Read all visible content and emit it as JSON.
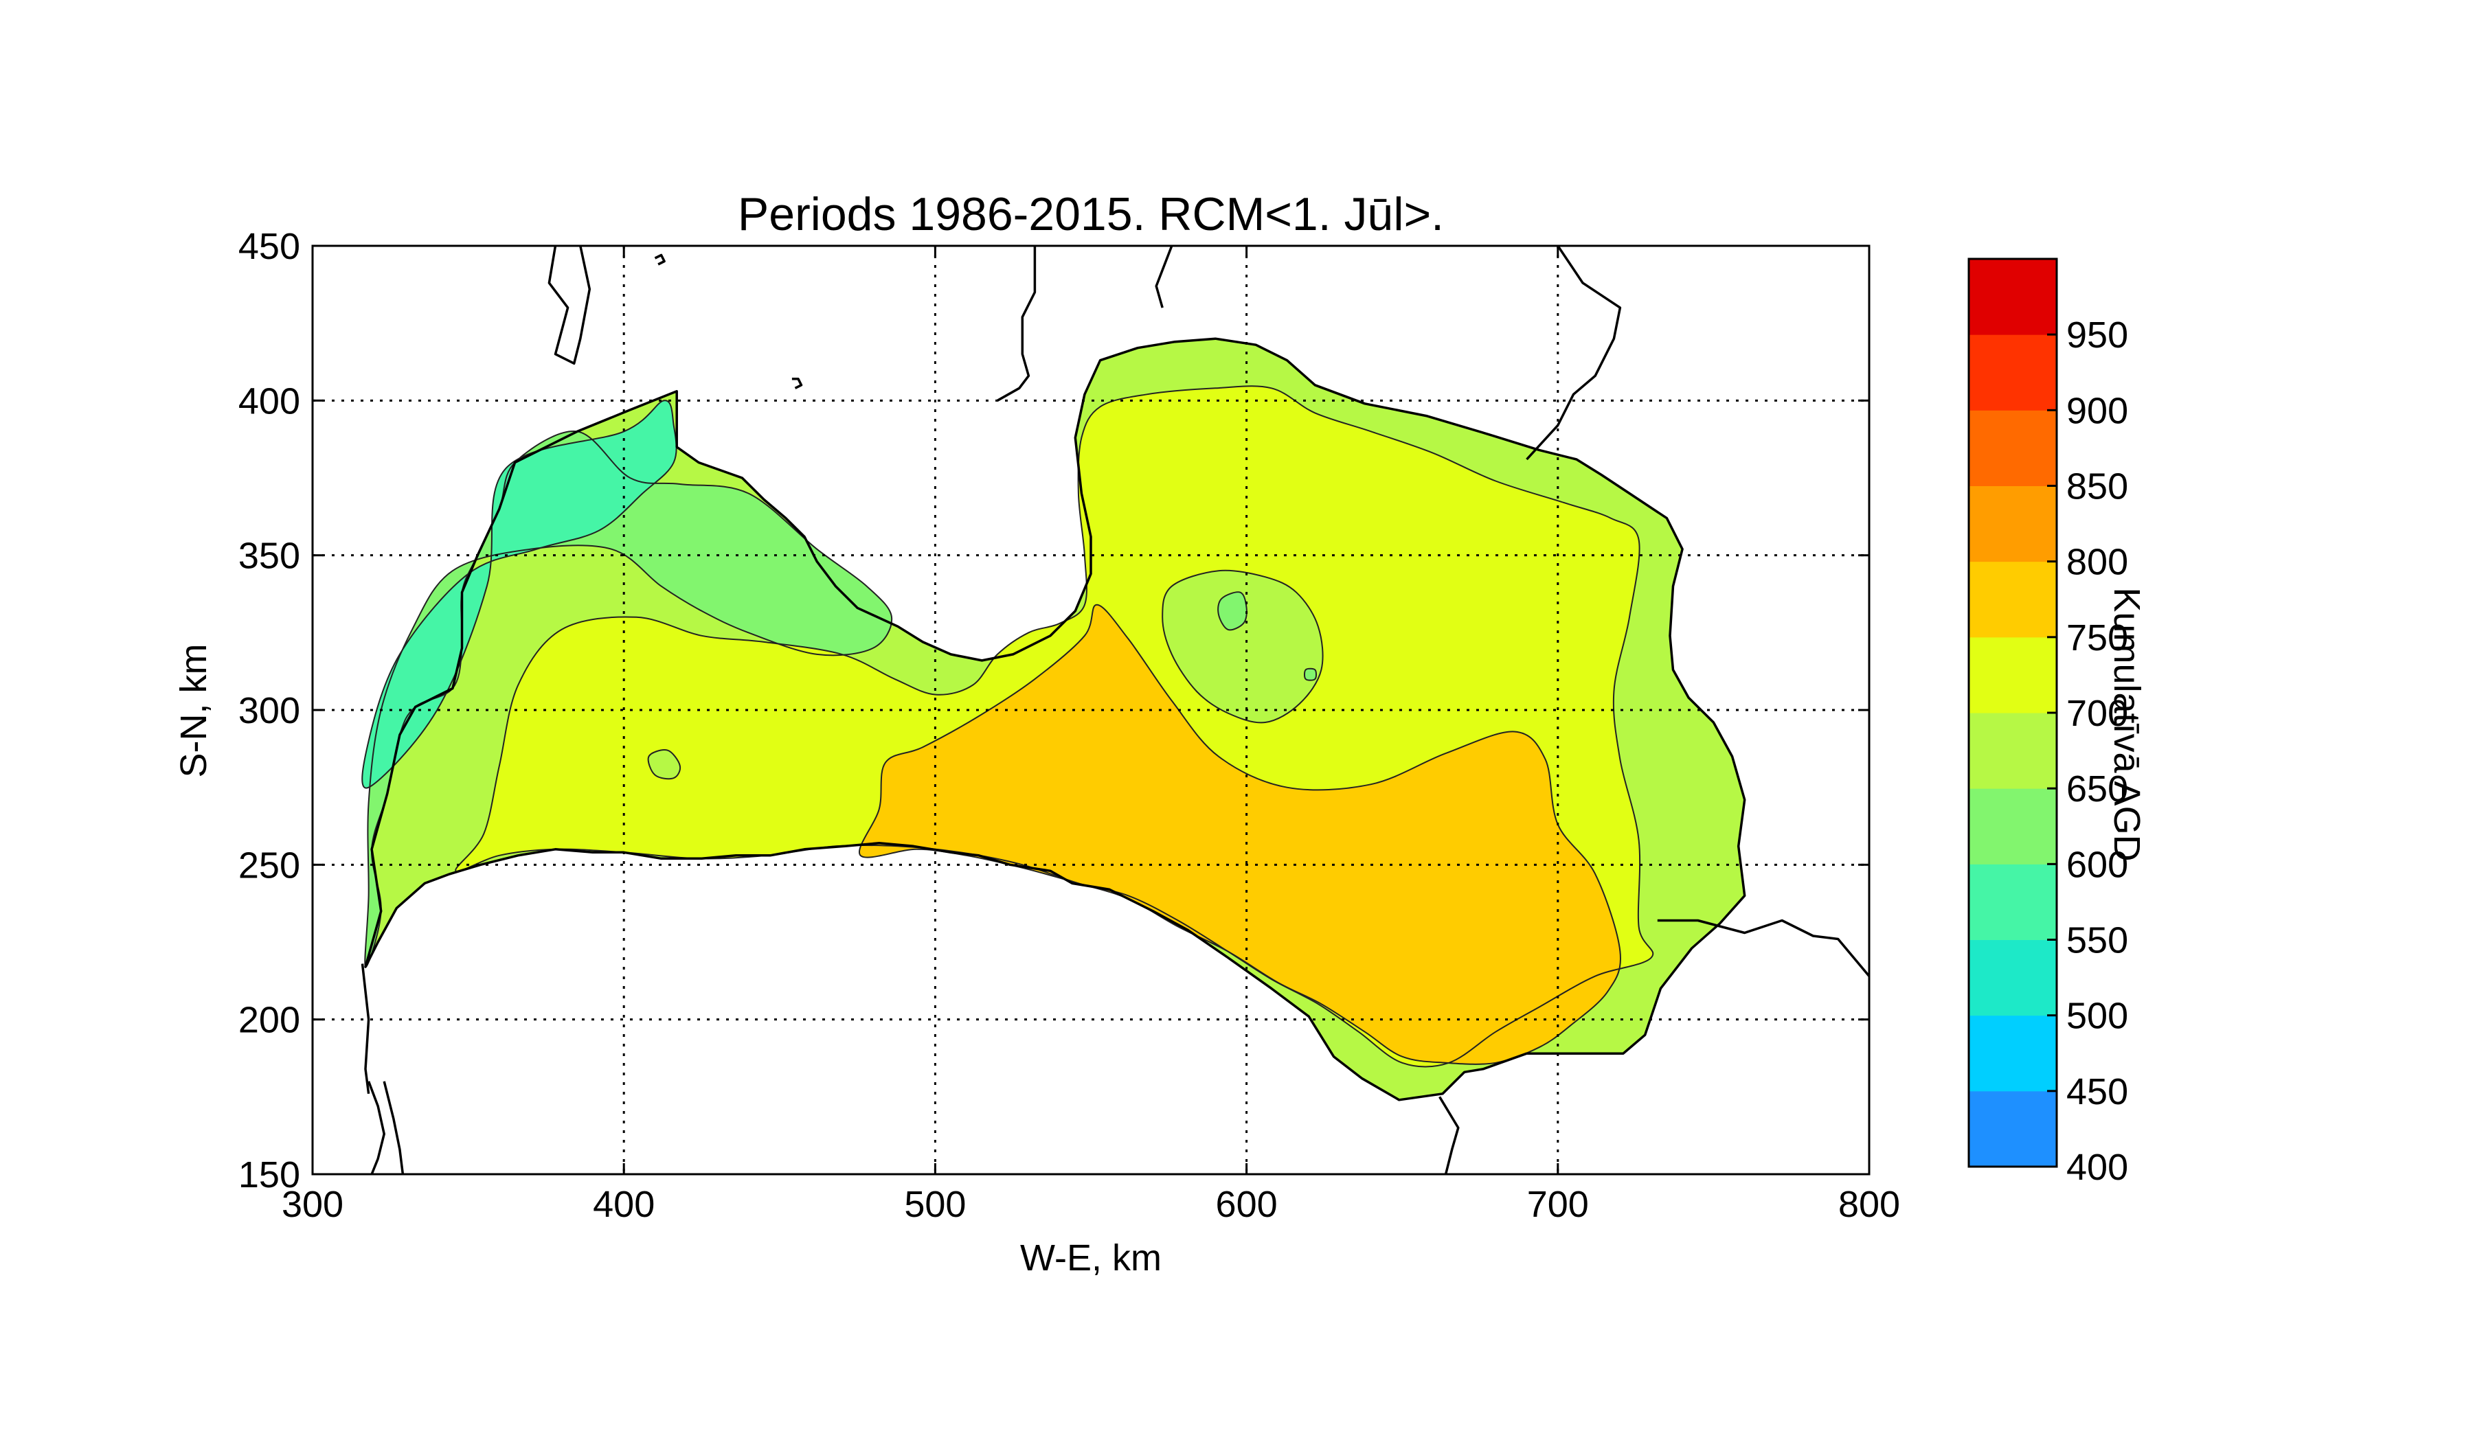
{
  "chart_data": {
    "type": "contour map",
    "title": "Periods 1986-2015. RCM<1. Jūl>.",
    "xlabel": "W-E, km",
    "ylabel": "S-N, km",
    "xlim": [
      300,
      800
    ],
    "ylim": [
      150,
      450
    ],
    "xticks": [
      300,
      400,
      500,
      600,
      700,
      800
    ],
    "yticks": [
      150,
      200,
      250,
      300,
      350,
      400,
      450
    ],
    "grid": true,
    "colorbar": {
      "label": "Kumulatīvā AGD",
      "position": "right",
      "tick_labels": [
        400,
        450,
        500,
        550,
        600,
        650,
        700,
        750,
        800,
        850,
        900,
        950
      ],
      "levels": [
        400,
        450,
        500,
        550,
        600,
        650,
        700,
        750,
        800,
        850,
        900,
        950,
        1000
      ],
      "colors": [
        "#1e90ff",
        "#00cfff",
        "#1de9c8",
        "#45f5a6",
        "#82f56e",
        "#b6f845",
        "#e1ff14",
        "#ffcc00",
        "#ff9d00",
        "#ff6a00",
        "#ff3300",
        "#e00000"
      ]
    },
    "regions": [
      {
        "range": [
          550,
          600
        ],
        "color": "#45f5a6",
        "area": "north-west coast (Kurzeme tip)"
      },
      {
        "range": [
          600,
          650
        ],
        "color": "#82f56e",
        "area": "west coast and central-east upland"
      },
      {
        "range": [
          650,
          700
        ],
        "color": "#b6f845",
        "area": "coastal fringe, north and east borders"
      },
      {
        "range": [
          700,
          750
        ],
        "color": "#e1ff14",
        "area": "most of the country"
      },
      {
        "range": [
          750,
          800
        ],
        "color": "#ffcc00",
        "area": "south-central and south-east"
      }
    ]
  }
}
